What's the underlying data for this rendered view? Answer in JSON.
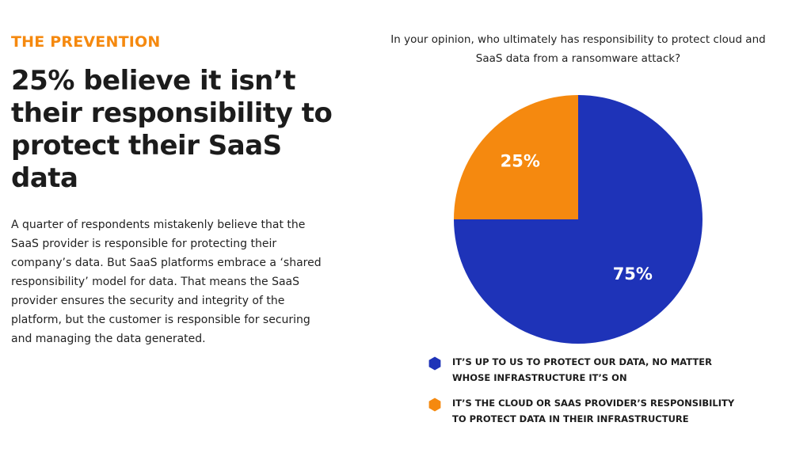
{
  "eyebrow": "THE PREVENTION",
  "headline": "25% believe it isn’t their responsibility to protect their SaaS data",
  "body": "A quarter of respondents mistakenly believe that the SaaS provider is responsible for protecting their company’s data. But SaaS platforms embrace a ‘shared responsibility’ model for data. That means the SaaS provider ensures the security and integrity of the platform, but the customer is responsible for securing and managing the data generated.",
  "colors": {
    "accent": "#f5890f",
    "primary": "#1e33b8",
    "text": "#1c1c1c"
  },
  "chart_data": {
    "type": "pie",
    "title": "In your opinion, who ultimately has responsibility to protect cloud and SaaS data from a ransomware attack?",
    "slices": [
      {
        "label": "IT’S UP TO US TO PROTECT OUR DATA, NO MATTER WHOSE INFRASTRUCTURE IT’S ON",
        "value": 75,
        "display": "75%",
        "color": "#1e33b8"
      },
      {
        "label": "IT’S THE CLOUD OR SAAS PROVIDER’S RESPONSIBILITY TO PROTECT DATA IN THEIR INFRASTRUCTURE",
        "value": 25,
        "display": "25%",
        "color": "#f5890f"
      }
    ],
    "legend_position": "bottom"
  }
}
